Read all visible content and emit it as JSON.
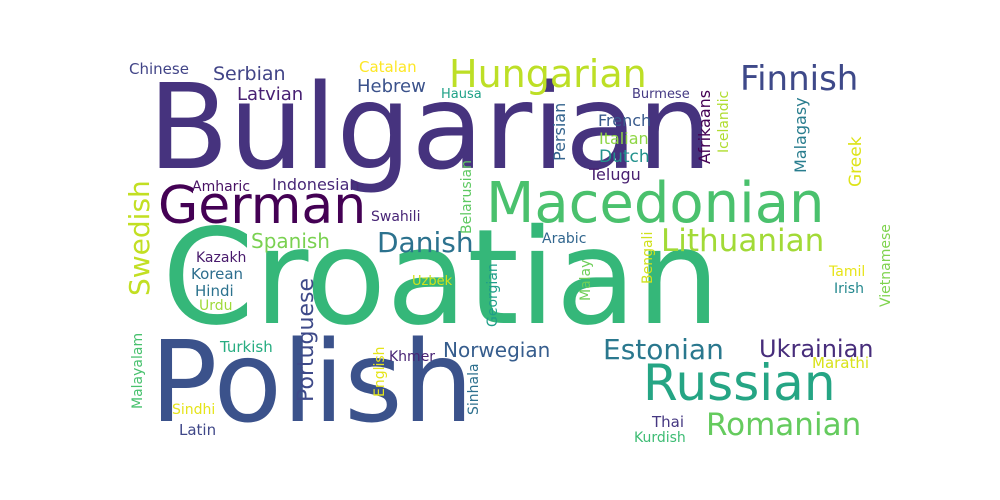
{
  "words": [
    {
      "text": "Bulgarian",
      "color": "#46337e"
    },
    {
      "text": "Croatian",
      "color": "#35b779"
    },
    {
      "text": "Polish",
      "color": "#3b528b"
    },
    {
      "text": "Macedonian",
      "color": "#4ac16d"
    },
    {
      "text": "German",
      "color": "#440154"
    },
    {
      "text": "Russian",
      "color": "#25a584"
    },
    {
      "text": "Hungarian",
      "color": "#bddf26"
    },
    {
      "text": "Finnish",
      "color": "#3e4989"
    },
    {
      "text": "Lithuanian",
      "color": "#a2da37"
    },
    {
      "text": "Romanian",
      "color": "#65cb5e"
    },
    {
      "text": "Estonian",
      "color": "#2a788e"
    },
    {
      "text": "Danish",
      "color": "#2c728e"
    },
    {
      "text": "Swedish",
      "color": "#c2df23"
    },
    {
      "text": "Ukrainian",
      "color": "#472d7b"
    },
    {
      "text": "Norwegian",
      "color": "#365d8d"
    },
    {
      "text": "Portuguese",
      "color": "#3e4a89"
    },
    {
      "text": "Spanish",
      "color": "#7ad151"
    },
    {
      "text": "Serbian",
      "color": "#414487"
    },
    {
      "text": "Hebrew",
      "color": "#3b528b"
    },
    {
      "text": "Latvian",
      "color": "#482173"
    },
    {
      "text": "Indonesian",
      "color": "#482878"
    },
    {
      "text": "French",
      "color": "#38598c"
    },
    {
      "text": "Dutch",
      "color": "#21918c"
    },
    {
      "text": "Italian",
      "color": "#8ed645"
    },
    {
      "text": "Telugu",
      "color": "#481f70"
    },
    {
      "text": "Persian",
      "color": "#33638d"
    },
    {
      "text": "Afrikaans",
      "color": "#440154"
    },
    {
      "text": "Icelandic",
      "color": "#b0dd2f"
    },
    {
      "text": "Malagasy",
      "color": "#287d8e"
    },
    {
      "text": "Greek",
      "color": "#dde318"
    },
    {
      "text": "Chinese",
      "color": "#414487"
    },
    {
      "text": "Catalan",
      "color": "#fde725"
    },
    {
      "text": "Hausa",
      "color": "#1fa187"
    },
    {
      "text": "Burmese",
      "color": "#443983"
    },
    {
      "text": "Amharic",
      "color": "#471063"
    },
    {
      "text": "Swahili",
      "color": "#482576"
    },
    {
      "text": "Belarusian",
      "color": "#5ec962"
    },
    {
      "text": "Arabic",
      "color": "#31668e"
    },
    {
      "text": "Kazakh",
      "color": "#481a6c"
    },
    {
      "text": "Korean",
      "color": "#2e6e8e"
    },
    {
      "text": "Hindi",
      "color": "#2c728e"
    },
    {
      "text": "Urdu",
      "color": "#9fda3a"
    },
    {
      "text": "Uzbek",
      "color": "#d2e21b"
    },
    {
      "text": "Georgian",
      "color": "#1f9e89"
    },
    {
      "text": "Malay",
      "color": "#6ece58"
    },
    {
      "text": "Bengali",
      "color": "#d0e11c"
    },
    {
      "text": "Tamil",
      "color": "#e7e419"
    },
    {
      "text": "Irish",
      "color": "#23888e"
    },
    {
      "text": "Vietnamese",
      "color": "#7fd34e"
    },
    {
      "text": "Turkish",
      "color": "#27ad81"
    },
    {
      "text": "Khmer",
      "color": "#482475"
    },
    {
      "text": "Marathi",
      "color": "#d8e219"
    },
    {
      "text": "Malayalam",
      "color": "#48c16e"
    },
    {
      "text": "English",
      "color": "#e5e419"
    },
    {
      "text": "Sinhala",
      "color": "#2d708e"
    },
    {
      "text": "Sindhi",
      "color": "#e5e419"
    },
    {
      "text": "Latin",
      "color": "#3f4788"
    },
    {
      "text": "Thai",
      "color": "#453781"
    },
    {
      "text": "Kurdish",
      "color": "#3dbc74"
    }
  ]
}
